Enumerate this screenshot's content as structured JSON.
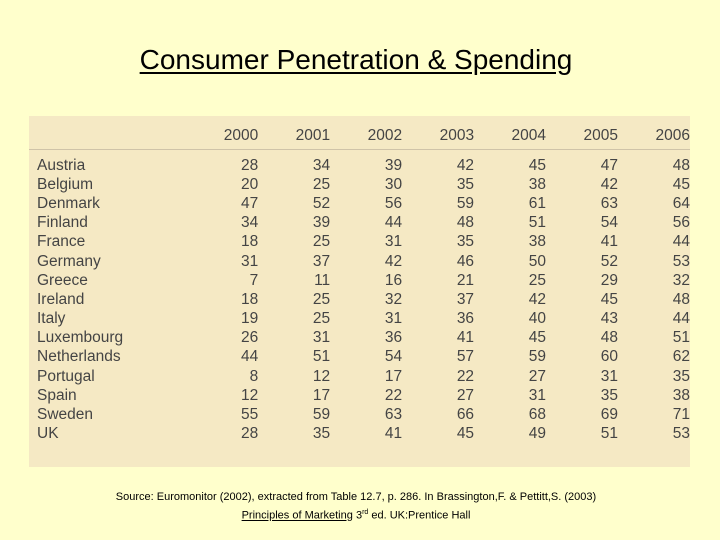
{
  "title": "Consumer Penetration & Spending",
  "table": {
    "years": [
      "2000",
      "2001",
      "2002",
      "2003",
      "2004",
      "2005",
      "2006"
    ],
    "rows": [
      {
        "country": "Austria",
        "values": [
          28,
          34,
          39,
          42,
          45,
          47,
          48
        ]
      },
      {
        "country": "Belgium",
        "values": [
          20,
          25,
          30,
          35,
          38,
          42,
          45
        ]
      },
      {
        "country": "Denmark",
        "values": [
          47,
          52,
          56,
          59,
          61,
          63,
          64
        ]
      },
      {
        "country": "Finland",
        "values": [
          34,
          39,
          44,
          48,
          51,
          54,
          56
        ]
      },
      {
        "country": "France",
        "values": [
          18,
          25,
          31,
          35,
          38,
          41,
          44
        ]
      },
      {
        "country": "Germany",
        "values": [
          31,
          37,
          42,
          46,
          50,
          52,
          53
        ]
      },
      {
        "country": "Greece",
        "values": [
          7,
          11,
          16,
          21,
          25,
          29,
          32
        ]
      },
      {
        "country": "Ireland",
        "values": [
          18,
          25,
          32,
          37,
          42,
          45,
          48
        ]
      },
      {
        "country": "Italy",
        "values": [
          19,
          25,
          31,
          36,
          40,
          43,
          44
        ]
      },
      {
        "country": "Luxembourg",
        "values": [
          26,
          31,
          36,
          41,
          45,
          48,
          51
        ]
      },
      {
        "country": "Netherlands",
        "values": [
          44,
          51,
          54,
          57,
          59,
          60,
          62
        ]
      },
      {
        "country": "Portugal",
        "values": [
          8,
          12,
          17,
          22,
          27,
          31,
          35
        ]
      },
      {
        "country": "Spain",
        "values": [
          12,
          17,
          22,
          27,
          31,
          35,
          38
        ]
      },
      {
        "country": "Sweden",
        "values": [
          55,
          59,
          63,
          66,
          68,
          69,
          71
        ]
      },
      {
        "country": "UK",
        "values": [
          28,
          35,
          41,
          45,
          49,
          51,
          53
        ]
      }
    ]
  },
  "source": {
    "line1": "Source: Euromonitor (2002), extracted from Table 12.7, p. 286. In Brassington,F. & Pettitt,S. (2003)",
    "book": "Principles of Marketing",
    "edition_num": "3",
    "edition_sup": "rd",
    "line2_rest": " ed. UK:Prentice Hall"
  },
  "colors": {
    "background": "#ffffcc",
    "panel": "#f5e9c4",
    "text": "#444444"
  }
}
